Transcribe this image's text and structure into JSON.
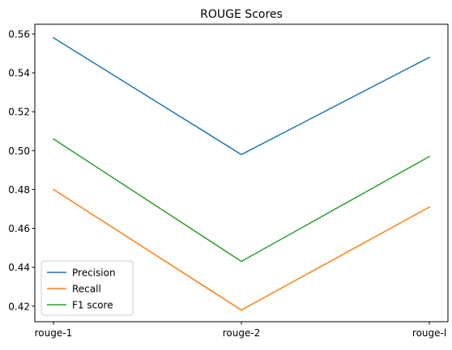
{
  "chart_data": {
    "type": "line",
    "title": "ROUGE Scores",
    "xlabel": "",
    "ylabel": "",
    "categories": [
      "rouge-1",
      "rouge-2",
      "rouge-l"
    ],
    "ylim": [
      0.412,
      0.565
    ],
    "yticks": [
      "0.42",
      "0.44",
      "0.46",
      "0.48",
      "0.50",
      "0.52",
      "0.54",
      "0.56"
    ],
    "grid": false,
    "legend_position": "lower-left",
    "series": [
      {
        "name": "Precision",
        "color": "#1f77b4",
        "values": [
          0.558,
          0.498,
          0.548
        ]
      },
      {
        "name": "Recall",
        "color": "#ff7f0e",
        "values": [
          0.48,
          0.418,
          0.471
        ]
      },
      {
        "name": "F1 score",
        "color": "#2ca02c",
        "values": [
          0.506,
          0.443,
          0.497
        ]
      }
    ]
  }
}
